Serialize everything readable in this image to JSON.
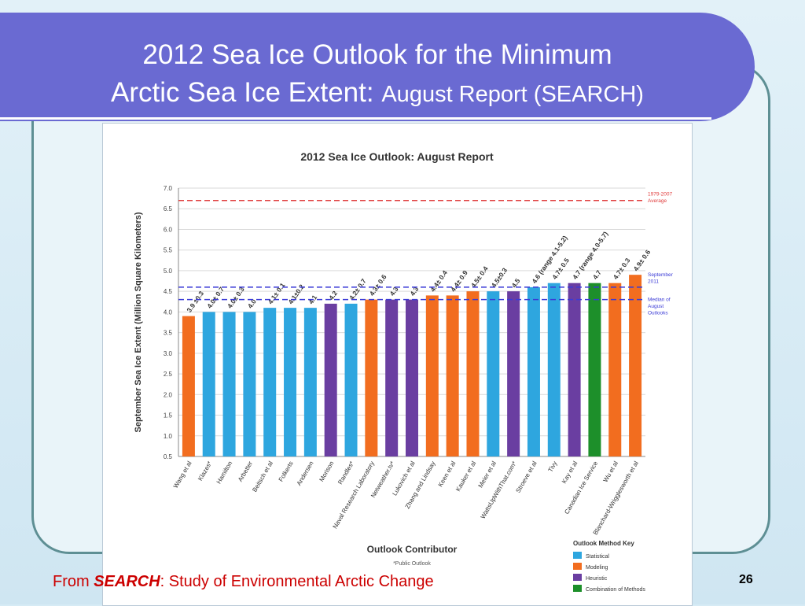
{
  "slide": {
    "title_line1": "2012 Sea Ice Outlook for the Minimum",
    "title_line2_main": "Arctic Sea Ice Extent:",
    "title_line2_sub": "August Report (SEARCH)",
    "footer_prefix": "From ",
    "footer_source": "SEARCH",
    "footer_suffix": ": Study of Environmental Arctic Change",
    "page_number": "26",
    "colors": {
      "title_bar": "#6a6ad2",
      "frame": "#5e8f94",
      "footer_text": "#cc0000"
    }
  },
  "chart_data": {
    "type": "bar",
    "title": "2012 Sea Ice Outlook: August Report",
    "xlabel": "Outlook Contributor",
    "ylabel": "September Sea Ice Extent (Million Square Kilometers)",
    "footnote": "*Public Outlook",
    "ylim": [
      0.5,
      7.0
    ],
    "yticks": [
      "0.5",
      "1.0",
      "1.5",
      "2.0",
      "2.5",
      "3.0",
      "3.5",
      "4.0",
      "4.5",
      "5.0",
      "5.5",
      "6.0",
      "6.5",
      "7.0"
    ],
    "grid": true,
    "categories": [
      "Wang et al",
      "Klazes*",
      "Hamilton",
      "Arbetter",
      "Beitsch et al",
      "Folkerts",
      "Andersen",
      "Morison",
      "Randles*",
      "Naval Research Laboratory",
      "Netweather.tv*",
      "Lukovich et al",
      "Zhang and Lindsay",
      "Keen et al",
      "Kauker et al",
      "Meier et al",
      "WattsUpWithThat.com*",
      "Stroeve et al",
      "Tivy",
      "Kay et al",
      "Canadian Ice Service",
      "Wu et al",
      "Blanchard-Wrigglesworth et al"
    ],
    "values": [
      3.9,
      4.0,
      4.0,
      4.0,
      4.1,
      4.1,
      4.1,
      4.2,
      4.2,
      4.3,
      4.3,
      4.3,
      4.4,
      4.4,
      4.5,
      4.5,
      4.5,
      4.6,
      4.7,
      4.7,
      4.7,
      4.7,
      4.9
    ],
    "labels": [
      "3.9 ±0.3",
      "4.0± 0.7",
      "4.0± 0.3",
      "4.0",
      "4.1± 0.1",
      "4.1±0.2",
      "4.1",
      "4.2",
      "4.2± 0.7",
      "4.3± 0.6",
      "4.3",
      "4.3",
      "4.4± 0.4",
      "4.4± 0.9",
      "4.5± 0.4",
      "4.5±0.3",
      "4.5",
      "4.6 (range 4.1-5.2)",
      "4.7± 0.5",
      "4.7 (range 4.0-5.7)",
      "4.7",
      "4.7± 0.3",
      "4.9± 0.6"
    ],
    "methods": [
      "Modeling",
      "Statistical",
      "Statistical",
      "Statistical",
      "Statistical",
      "Statistical",
      "Statistical",
      "Heuristic",
      "Statistical",
      "Modeling",
      "Heuristic",
      "Heuristic",
      "Modeling",
      "Modeling",
      "Modeling",
      "Statistical",
      "Heuristic",
      "Statistical",
      "Statistical",
      "Heuristic",
      "Combination of Methods",
      "Modeling",
      "Modeling"
    ],
    "method_colors": {
      "Statistical": "#2ea6df",
      "Modeling": "#f26d1f",
      "Heuristic": "#6a3ea1",
      "Combination of Methods": "#1d8f2a"
    },
    "legend": {
      "title": "Outlook Method Key",
      "items": [
        "Statistical",
        "Modeling",
        "Heuristic",
        "Combination of Methods"
      ],
      "placement": "bottom-right"
    },
    "reference_lines": [
      {
        "value": 6.7,
        "label": "1979-2007 Average",
        "color": "#e03c3c"
      },
      {
        "value": 4.6,
        "label": "September 2011",
        "color": "#3a3ad6"
      },
      {
        "value": 4.3,
        "label": "Median of August Outlooks",
        "color": "#3a3ad6"
      }
    ]
  }
}
